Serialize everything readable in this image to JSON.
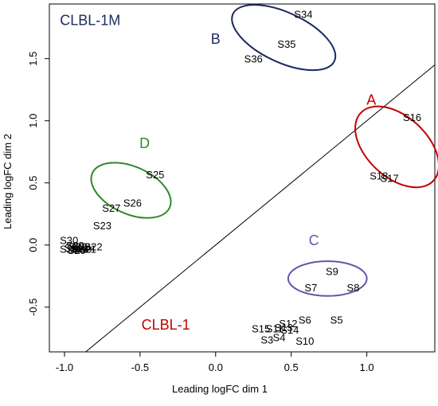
{
  "chart_data": {
    "type": "scatter",
    "xlabel": "Leading logFC dim 1",
    "ylabel": "Leading logFC dim 2",
    "xlim": [
      -1.1,
      1.45
    ],
    "ylim": [
      -0.86,
      1.94
    ],
    "x_ticks": [
      "-1.0",
      "-0.5",
      "0.0",
      "0.5",
      "1.0"
    ],
    "y_ticks": [
      "-0.5",
      "0.0",
      "0.5",
      "1.0",
      "1.5"
    ],
    "x_tick_values": [
      -1.0,
      -0.5,
      0.0,
      0.5,
      1.0
    ],
    "y_tick_values": [
      -0.5,
      0.0,
      0.5,
      1.0,
      1.5
    ],
    "grid": false,
    "diagonal_line": "y = x",
    "region_labels": [
      {
        "text": "CLBL-1M",
        "x": -0.83,
        "y": 1.77,
        "color": "#1b2a5e"
      },
      {
        "text": "CLBL-1",
        "x": -0.33,
        "y": -0.68,
        "color": "#c00000"
      }
    ],
    "points": [
      {
        "label": "S34",
        "x": 0.58,
        "y": 1.86
      },
      {
        "label": "S35",
        "x": 0.47,
        "y": 1.62
      },
      {
        "label": "S36",
        "x": 0.25,
        "y": 1.5
      },
      {
        "label": "S16",
        "x": 1.3,
        "y": 1.03
      },
      {
        "label": "S18",
        "x": 1.08,
        "y": 0.56
      },
      {
        "label": "S17",
        "x": 1.15,
        "y": 0.54
      },
      {
        "label": "S25",
        "x": -0.4,
        "y": 0.57
      },
      {
        "label": "S26",
        "x": -0.55,
        "y": 0.34
      },
      {
        "label": "S27",
        "x": -0.69,
        "y": 0.3
      },
      {
        "label": "S23",
        "x": -0.75,
        "y": 0.16
      },
      {
        "label": "S30",
        "x": -0.97,
        "y": 0.04
      },
      {
        "label": "S29",
        "x": -0.93,
        "y": 0.0
      },
      {
        "label": "S31",
        "x": -0.94,
        "y": -0.02
      },
      {
        "label": "S32",
        "x": -0.89,
        "y": -0.01
      },
      {
        "label": "S33",
        "x": -0.91,
        "y": -0.01
      },
      {
        "label": "S19",
        "x": -0.88,
        "y": -0.03
      },
      {
        "label": "S22",
        "x": -0.81,
        "y": -0.01
      },
      {
        "label": "S28",
        "x": -0.97,
        "y": -0.03
      },
      {
        "label": "S20",
        "x": -0.92,
        "y": -0.04
      },
      {
        "label": "S21",
        "x": -0.85,
        "y": -0.03
      },
      {
        "label": "S24",
        "x": -0.9,
        "y": -0.03
      },
      {
        "label": "S9",
        "x": 0.77,
        "y": -0.21
      },
      {
        "label": "S7",
        "x": 0.63,
        "y": -0.34
      },
      {
        "label": "S8",
        "x": 0.91,
        "y": -0.34
      },
      {
        "label": "S5",
        "x": 0.8,
        "y": -0.6
      },
      {
        "label": "S6",
        "x": 0.59,
        "y": -0.6
      },
      {
        "label": "S12",
        "x": 0.48,
        "y": -0.63
      },
      {
        "label": "S13",
        "x": 0.45,
        "y": -0.66
      },
      {
        "label": "S14",
        "x": 0.49,
        "y": -0.68
      },
      {
        "label": "S11",
        "x": 0.39,
        "y": -0.67
      },
      {
        "label": "S15",
        "x": 0.3,
        "y": -0.67
      },
      {
        "label": "S4",
        "x": 0.42,
        "y": -0.74
      },
      {
        "label": "S3",
        "x": 0.34,
        "y": -0.76
      },
      {
        "label": "S10",
        "x": 0.59,
        "y": -0.77
      }
    ],
    "clusters": [
      {
        "label": "A",
        "color": "#c00000",
        "cx": 1.2,
        "cy": 0.79,
        "rx": 0.2,
        "ry": 0.4,
        "angle": 47,
        "label_x": 1.03,
        "label_y": 1.13
      },
      {
        "label": "B",
        "color": "#1b2a5e",
        "cx": 0.45,
        "cy": 1.67,
        "rx": 0.37,
        "ry": 0.2,
        "angle": -25,
        "label_x": 0.0,
        "label_y": 1.62
      },
      {
        "label": "C",
        "color": "#6a4fb0",
        "cx": 0.74,
        "cy": -0.27,
        "rx": 0.26,
        "ry": 0.14,
        "angle": 0,
        "label_x": 0.65,
        "label_y": 0.0
      },
      {
        "label": "D",
        "color": "#2b8a2b",
        "cx": -0.56,
        "cy": 0.44,
        "rx": 0.28,
        "ry": 0.19,
        "angle": -24,
        "label_x": -0.47,
        "label_y": 0.78
      }
    ]
  }
}
